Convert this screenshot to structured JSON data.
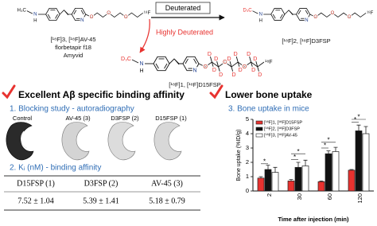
{
  "structures": [
    {
      "methyl": "H₃C",
      "amine": "N",
      "hydrogen": "H",
      "ring_nitrogen": "N",
      "oxygens": [
        "O",
        "O",
        "O"
      ],
      "fluorine": "¹⁸F",
      "names": [
        "[¹⁸F]3, [¹⁸F]AV-45",
        "florbetapir f18",
        "Amyvid"
      ]
    },
    {
      "methyl": "D₃C",
      "amine": "N",
      "hydrogen": "H",
      "ring_nitrogen": "N",
      "oxygens": [
        "O",
        "O",
        "O"
      ],
      "fluorine": "¹⁸F",
      "names": [
        "[¹⁸F]2, [¹⁸F]D3FSP"
      ]
    },
    {
      "methyl": "D₃C",
      "amine": "N",
      "hydrogen": "H",
      "ring_nitrogen": "N",
      "oxygens": [
        "O",
        "O",
        "O"
      ],
      "fluorine": "¹⁸F",
      "deuteriums": [
        "D",
        "D",
        "D",
        "D",
        "D",
        "D",
        "D",
        "D",
        "D",
        "D",
        "D",
        "D"
      ],
      "names": [
        "[¹⁸F]1, [¹⁸F]D15FSP"
      ]
    }
  ],
  "arrows": {
    "deuterated": "Deuterated",
    "highly_deuterated": "Highly Deuterated"
  },
  "binding": {
    "heading": "Excellent Aβ specific binding affinity",
    "blocking": "1. Blocking study - autoradiography",
    "images": [
      "Control",
      "AV-45 (3)",
      "D3FSP (2)",
      "D15FSP (1)"
    ],
    "affinity": "2. Kᵢ (nM) - binding affinity"
  },
  "table": {
    "header": [
      "D15FSP (1)",
      "D3FSP (2)",
      "AV-45 (3)"
    ],
    "rows": [
      [
        "7.52 ± 1.04",
        "5.39 ± 1.41",
        "5.18 ± 0.79"
      ]
    ]
  },
  "bone": {
    "heading": "Lower bone uptake",
    "subheading": "3. Bone uptake in mice"
  },
  "chart_data": {
    "type": "bar",
    "x_label": "Time after injection (min)",
    "y_label": "Bone uptake (%ID/g)",
    "categories": [
      "2",
      "30",
      "60",
      "120"
    ],
    "series": [
      {
        "name": "[¹⁸F]1, [¹⁸F]D15FSP",
        "color": "#e8322f",
        "values": [
          0.9,
          0.7,
          0.65,
          1.45
        ],
        "errors": [
          0.1,
          0.1,
          0.05,
          0.05
        ]
      },
      {
        "name": "[¹⁸F]2, [¹⁸F]D3FSP",
        "color": "#111111",
        "values": [
          1.5,
          1.65,
          2.6,
          4.2
        ],
        "errors": [
          0.3,
          0.35,
          0.2,
          0.4
        ]
      },
      {
        "name": "[¹⁸F]3, [¹⁸F]AV-45",
        "color": "#ffffff",
        "values": [
          1.3,
          1.75,
          2.75,
          4.0
        ],
        "errors": [
          0.35,
          0.4,
          0.3,
          0.5
        ]
      }
    ],
    "ylim": [
      0,
      5
    ],
    "yticks": [
      0,
      1,
      2,
      3,
      4,
      5
    ],
    "legend": "upper left",
    "annotations": [
      "*",
      "*",
      "*",
      "*",
      "*",
      "*",
      "*"
    ]
  }
}
